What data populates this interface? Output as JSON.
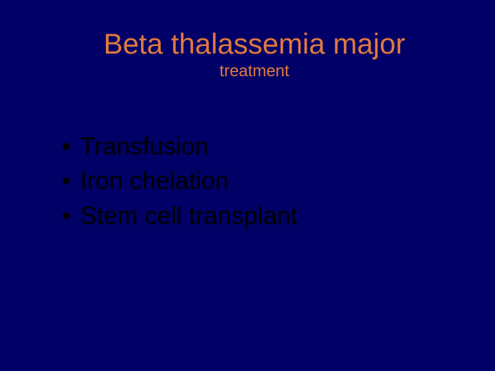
{
  "colors": {
    "background": "#000066",
    "title_color": "#e07a3f",
    "bullet_text_color": "#000000"
  },
  "typography": {
    "title_fontsize": 42,
    "subtitle_fontsize": 24,
    "bullet_fontsize": 36,
    "title_font": "Verdana",
    "bullet_font": "Arial"
  },
  "slide": {
    "title": "Beta thalassemia major",
    "subtitle": "treatment",
    "bullets": [
      {
        "marker": "•",
        "text": "Transfusion"
      },
      {
        "marker": "•",
        "text": "Iron chelation"
      },
      {
        "marker": "•",
        "text": "Stem cell transplant"
      }
    ]
  }
}
